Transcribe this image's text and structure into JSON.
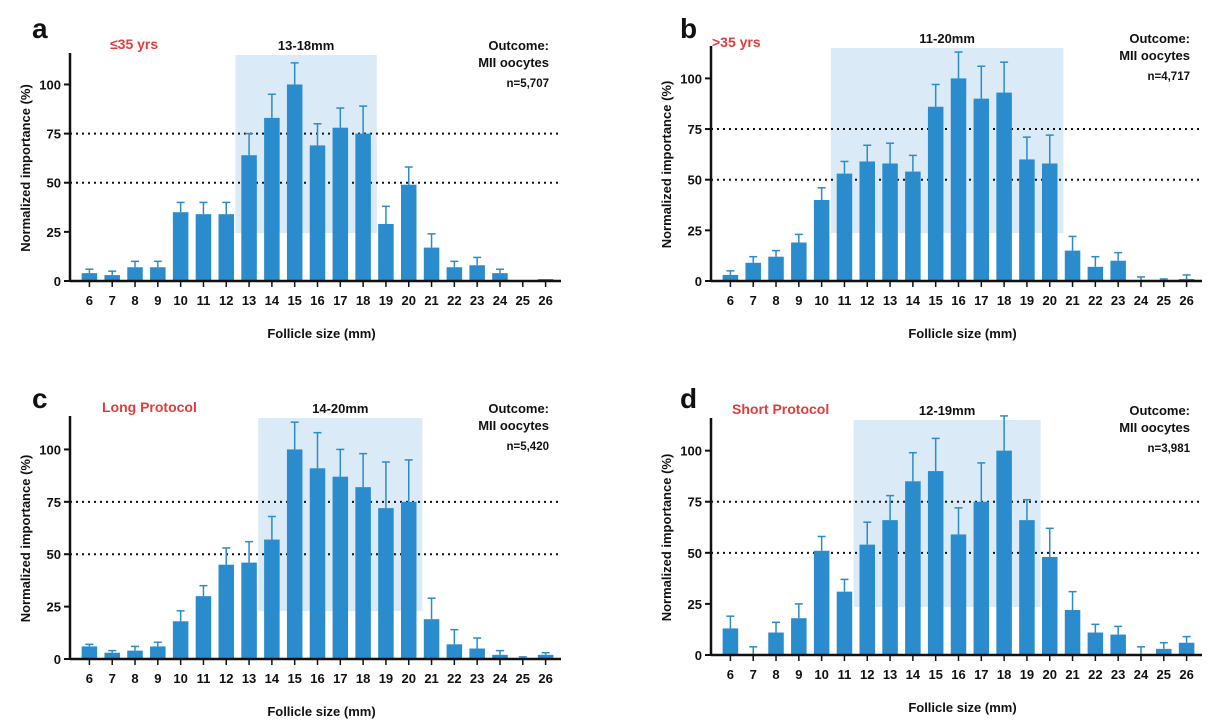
{
  "colors": {
    "bar": "#2a8ccc",
    "error": "#2a8ccc",
    "highlight": "#dbeaf7",
    "group_label": "#e03c3c",
    "axis": "#111111"
  },
  "chart_data": [
    {
      "panel": "a",
      "type": "bar",
      "group_label": "≤35 yrs",
      "highlight_label": "13-18mm",
      "highlight_range": [
        13,
        18
      ],
      "outcome_line1": "Outcome:",
      "outcome_line2": "MII oocytes",
      "n_label": "n=5,707",
      "xlabel": "Follicle size (mm)",
      "ylabel": "Normalized importance (%)",
      "ylim": [
        0,
        115
      ],
      "yticks": [
        0,
        25,
        50,
        75,
        100
      ],
      "reference_lines": [
        50,
        75
      ],
      "categories": [
        "6",
        "7",
        "8",
        "9",
        "10",
        "11",
        "12",
        "13",
        "14",
        "15",
        "16",
        "17",
        "18",
        "19",
        "20",
        "21",
        "22",
        "23",
        "24",
        "25",
        "26"
      ],
      "values": [
        4,
        3,
        7,
        7,
        35,
        34,
        34,
        64,
        83,
        100,
        69,
        78,
        75,
        29,
        49,
        17,
        7,
        8,
        4,
        0,
        1
      ],
      "errors": [
        2,
        2,
        3,
        3,
        5,
        6,
        6,
        11,
        12,
        11,
        11,
        10,
        14,
        9,
        9,
        7,
        3,
        4,
        2,
        0,
        0
      ]
    },
    {
      "panel": "b",
      "type": "bar",
      "group_label": ">35 yrs",
      "highlight_label": "11-20mm",
      "highlight_range": [
        11,
        20
      ],
      "outcome_line1": "Outcome:",
      "outcome_line2": "MII oocytes",
      "n_label": "n=4,717",
      "xlabel": "Follicle size (mm)",
      "ylabel": "Normalized importance (%)",
      "ylim": [
        0,
        115
      ],
      "yticks": [
        0,
        25,
        50,
        75,
        100
      ],
      "reference_lines": [
        50,
        75
      ],
      "categories": [
        "6",
        "7",
        "8",
        "9",
        "10",
        "11",
        "12",
        "13",
        "14",
        "15",
        "16",
        "17",
        "18",
        "19",
        "20",
        "21",
        "22",
        "23",
        "24",
        "25",
        "26"
      ],
      "values": [
        3,
        9,
        12,
        19,
        40,
        53,
        59,
        58,
        54,
        86,
        100,
        90,
        93,
        60,
        58,
        15,
        7,
        10,
        0,
        0,
        1
      ],
      "errors": [
        2,
        3,
        3,
        4,
        6,
        6,
        8,
        10,
        8,
        11,
        13,
        16,
        15,
        11,
        14,
        7,
        5,
        4,
        2,
        1,
        2
      ]
    },
    {
      "panel": "c",
      "type": "bar",
      "group_label": "Long Protocol",
      "highlight_label": "14-20mm",
      "highlight_range": [
        14,
        20
      ],
      "outcome_line1": "Outcome:",
      "outcome_line2": "MII oocytes",
      "n_label": "n=5,420",
      "xlabel": "Follicle size (mm)",
      "ylabel": "Normalized importance (%)",
      "ylim": [
        0,
        115
      ],
      "yticks": [
        0,
        25,
        50,
        75,
        100
      ],
      "reference_lines": [
        50,
        75
      ],
      "categories": [
        "6",
        "7",
        "8",
        "9",
        "10",
        "11",
        "12",
        "13",
        "14",
        "15",
        "16",
        "17",
        "18",
        "19",
        "20",
        "21",
        "22",
        "23",
        "24",
        "25",
        "26"
      ],
      "values": [
        6,
        3,
        4,
        6,
        18,
        30,
        45,
        46,
        57,
        100,
        91,
        87,
        82,
        72,
        75,
        19,
        7,
        5,
        2,
        0,
        2
      ],
      "errors": [
        1,
        1,
        2,
        2,
        5,
        5,
        8,
        10,
        11,
        13,
        17,
        13,
        16,
        22,
        20,
        10,
        7,
        5,
        2,
        1,
        1
      ]
    },
    {
      "panel": "d",
      "type": "bar",
      "group_label": "Short Protocol",
      "highlight_label": "12-19mm",
      "highlight_range": [
        12,
        19
      ],
      "outcome_line1": "Outcome:",
      "outcome_line2": "MII oocytes",
      "n_label": "n=3,981",
      "xlabel": "Follicle size (mm)",
      "ylabel": "Normalized importance (%)",
      "ylim": [
        0,
        115
      ],
      "yticks": [
        0,
        25,
        50,
        75,
        100
      ],
      "reference_lines": [
        50,
        75
      ],
      "categories": [
        "6",
        "7",
        "8",
        "9",
        "10",
        "11",
        "12",
        "13",
        "14",
        "15",
        "16",
        "17",
        "18",
        "19",
        "20",
        "21",
        "22",
        "23",
        "24",
        "25",
        "26"
      ],
      "values": [
        13,
        0,
        11,
        18,
        51,
        31,
        54,
        66,
        85,
        90,
        59,
        75,
        100,
        66,
        48,
        22,
        11,
        10,
        0,
        3,
        6
      ],
      "errors": [
        6,
        4,
        5,
        7,
        7,
        6,
        11,
        12,
        14,
        16,
        13,
        19,
        17,
        10,
        14,
        9,
        4,
        4,
        4,
        3,
        3
      ]
    }
  ]
}
